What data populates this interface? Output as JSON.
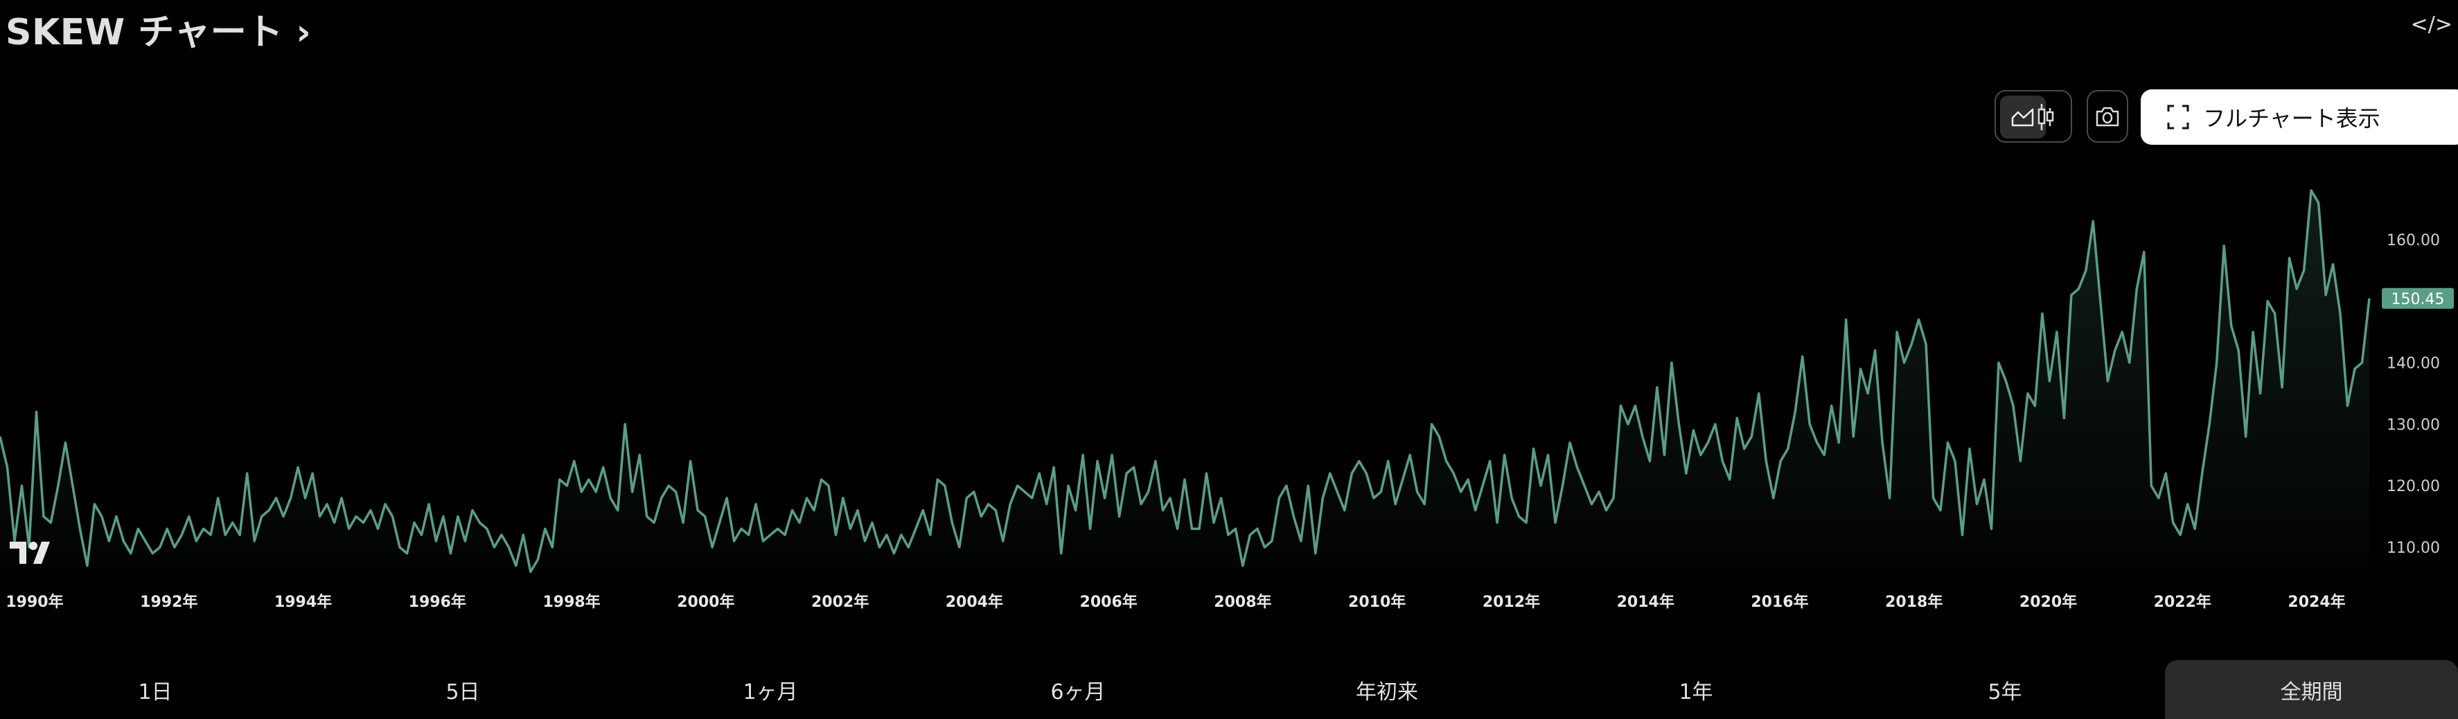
{
  "header": {
    "title": "SKEW チャート",
    "title_chevron": "›",
    "embed_icon": "</>"
  },
  "toolbar": {
    "chart_types": [
      {
        "icon": "area-chart-icon",
        "active": true
      },
      {
        "icon": "candlestick-icon",
        "active": false
      }
    ],
    "screenshot_icon": "camera-icon",
    "fullchart_label": "フルチャート表示",
    "fullchart_icon": "fullscreen-icon"
  },
  "ranges": [
    {
      "label": "1日",
      "selected": false
    },
    {
      "label": "5日",
      "selected": false
    },
    {
      "label": "1ヶ月",
      "selected": false
    },
    {
      "label": "6ヶ月",
      "selected": false
    },
    {
      "label": "年初来",
      "selected": false
    },
    {
      "label": "1年",
      "selected": false
    },
    {
      "label": "5年",
      "selected": false
    },
    {
      "label": "全期間",
      "selected": true
    }
  ],
  "colors": {
    "line": "#5a9e87",
    "background": "#000000",
    "badge": "#5a9e87",
    "selected_range_bg": "#2a2a2a"
  },
  "chart_data": {
    "type": "area",
    "symbol": "SKEW",
    "x_start": 1990.0,
    "x_end": 2025.3,
    "xticks": [
      "1990年",
      "1992年",
      "1994年",
      "1996年",
      "1998年",
      "2000年",
      "2002年",
      "2004年",
      "2006年",
      "2008年",
      "2010年",
      "2012年",
      "2014年",
      "2016年",
      "2018年",
      "2020年",
      "2022年",
      "2024年"
    ],
    "xtick_years": [
      1990,
      1992,
      1994,
      1996,
      1998,
      2000,
      2002,
      2004,
      2006,
      2008,
      2010,
      2012,
      2014,
      2016,
      2018,
      2020,
      2022,
      2024
    ],
    "yticks": [
      "110.00",
      "120.00",
      "130.00",
      "140.00",
      "150.00",
      "160.00"
    ],
    "ytick_values": [
      110,
      120,
      130,
      140,
      150,
      160
    ],
    "yticks_shown": [
      "110.00",
      "120.00",
      "130.00",
      "140.00",
      "160.00"
    ],
    "ylim": [
      106,
      172
    ],
    "last_value": "150.45",
    "grid": false,
    "values": [
      128,
      123,
      111,
      120,
      110,
      132,
      115,
      114,
      120,
      127,
      120,
      113,
      107,
      117,
      115,
      111,
      115,
      111,
      109,
      113,
      111,
      109,
      110,
      113,
      110,
      112,
      115,
      111,
      113,
      112,
      118,
      112,
      114,
      112,
      122,
      111,
      115,
      116,
      118,
      115,
      118,
      123,
      118,
      122,
      115,
      117,
      114,
      118,
      113,
      115,
      114,
      116,
      113,
      117,
      115,
      110,
      109,
      114,
      112,
      117,
      111,
      115,
      109,
      115,
      111,
      116,
      114,
      113,
      110,
      112,
      110,
      107,
      112,
      106,
      108,
      113,
      110,
      121,
      120,
      124,
      119,
      121,
      119,
      123,
      118,
      116,
      130,
      119,
      125,
      115,
      114,
      118,
      120,
      119,
      114,
      124,
      116,
      115,
      110,
      114,
      118,
      111,
      113,
      112,
      117,
      111,
      112,
      113,
      112,
      116,
      114,
      118,
      116,
      121,
      120,
      112,
      118,
      113,
      116,
      111,
      114,
      110,
      112,
      109,
      112,
      110,
      113,
      116,
      112,
      121,
      120,
      114,
      110,
      118,
      119,
      115,
      117,
      116,
      111,
      117,
      120,
      119,
      118,
      122,
      117,
      123,
      109,
      120,
      116,
      125,
      113,
      124,
      118,
      125,
      115,
      122,
      123,
      117,
      119,
      124,
      116,
      118,
      113,
      121,
      113,
      113,
      122,
      114,
      118,
      112,
      113,
      107,
      112,
      113,
      110,
      111,
      118,
      120,
      115,
      111,
      120,
      109,
      118,
      122,
      119,
      116,
      122,
      124,
      122,
      118,
      119,
      124,
      117,
      121,
      125,
      119,
      117,
      130,
      128,
      124,
      122,
      119,
      121,
      116,
      120,
      124,
      114,
      125,
      118,
      115,
      114,
      126,
      120,
      125,
      114,
      120,
      127,
      123,
      120,
      117,
      119,
      116,
      118,
      133,
      130,
      133,
      128,
      124,
      136,
      125,
      140,
      130,
      122,
      129,
      125,
      127,
      130,
      124,
      121,
      131,
      126,
      128,
      135,
      124,
      118,
      124,
      126,
      132,
      141,
      130,
      127,
      125,
      133,
      127,
      147,
      128,
      139,
      135,
      142,
      127,
      118,
      145,
      140,
      143,
      147,
      143,
      118,
      116,
      127,
      124,
      112,
      126,
      117,
      121,
      113,
      140,
      137,
      133,
      124,
      135,
      133,
      148,
      137,
      145,
      131,
      151,
      152,
      155,
      163,
      150,
      137,
      142,
      145,
      140,
      152,
      158,
      120,
      118,
      122,
      114,
      112,
      117,
      113,
      122,
      130,
      140,
      159,
      146,
      142,
      128,
      145,
      135,
      150,
      148,
      136,
      157,
      152,
      155,
      168,
      166,
      151,
      156,
      148,
      133,
      139,
      140,
      150.45
    ]
  }
}
